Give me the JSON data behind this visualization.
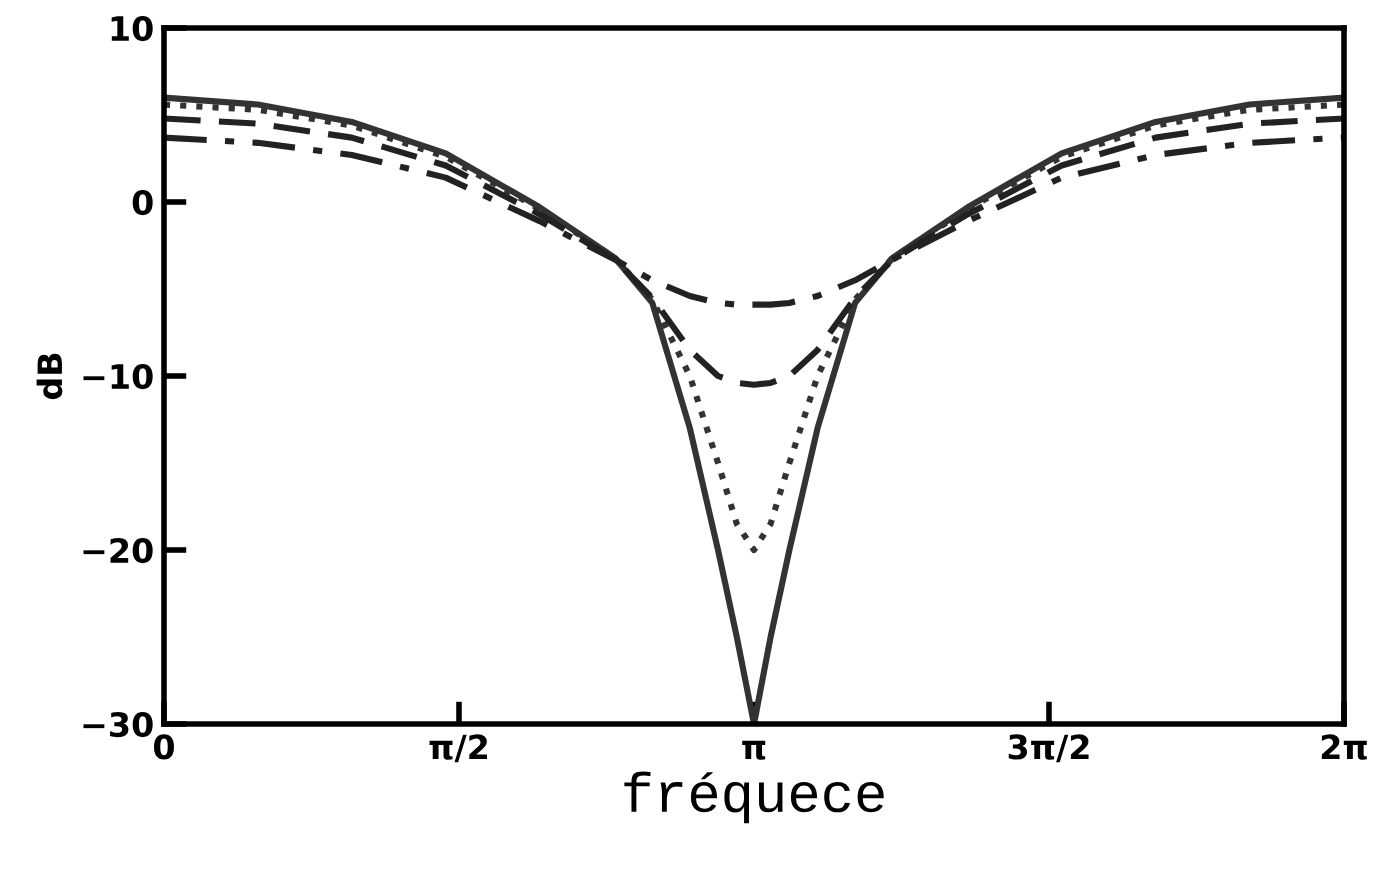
{
  "chart_data": {
    "type": "line",
    "xlabel": "fréquece",
    "ylabel": "dB",
    "x": [
      0,
      0.5,
      1.0,
      1.5,
      2.0,
      2.4,
      2.6,
      2.8,
      2.95,
      3.05,
      3.1416,
      3.23,
      3.33,
      3.48,
      3.68,
      3.88,
      4.28,
      4.78,
      5.28,
      5.78,
      6.2832
    ],
    "series": [
      {
        "color": "#333333",
        "line_style": "solid",
        "values": [
          6.0,
          5.6,
          4.6,
          2.8,
          -0.3,
          -3.2,
          -5.8,
          -13,
          -20,
          -25,
          -30,
          -25,
          -20,
          -13,
          -5.8,
          -3.2,
          -0.3,
          2.8,
          4.6,
          5.6,
          6.0
        ]
      },
      {
        "color": "#333333",
        "line_style": "dotted",
        "values": [
          5.6,
          5.3,
          4.4,
          2.6,
          -0.4,
          -3.2,
          -5.6,
          -10,
          -15,
          -18.5,
          -20,
          -18.5,
          -15,
          -10,
          -5.6,
          -3.2,
          -0.4,
          2.6,
          4.4,
          5.3,
          5.6
        ]
      },
      {
        "color": "#222222",
        "line_style": "dashed",
        "values": [
          4.8,
          4.5,
          3.7,
          2.1,
          -0.7,
          -3.3,
          -5.5,
          -8.5,
          -10,
          -10.4,
          -10.5,
          -10.4,
          -10,
          -8.5,
          -5.5,
          -3.3,
          -0.7,
          2.1,
          3.7,
          4.5,
          4.8
        ]
      },
      {
        "color": "#222222",
        "line_style": "dashdot",
        "values": [
          3.7,
          3.4,
          2.7,
          1.4,
          -1.1,
          -3.3,
          -4.5,
          -5.4,
          -5.8,
          -5.9,
          -5.9,
          -5.9,
          -5.8,
          -5.4,
          -4.5,
          -3.3,
          -1.1,
          1.4,
          2.7,
          3.4,
          3.7
        ]
      }
    ],
    "xlim": [
      0,
      6.2832
    ],
    "ylim": [
      -30,
      10
    ],
    "xticks": [
      {
        "value": 0,
        "label": "0"
      },
      {
        "value": 1.5708,
        "label": "π/2"
      },
      {
        "value": 3.1416,
        "label": "π"
      },
      {
        "value": 4.7124,
        "label": "3π/2"
      },
      {
        "value": 6.2832,
        "label": "2π"
      }
    ],
    "yticks": [
      -30,
      -20,
      -10,
      0,
      10
    ],
    "grid": false,
    "legend": false
  }
}
